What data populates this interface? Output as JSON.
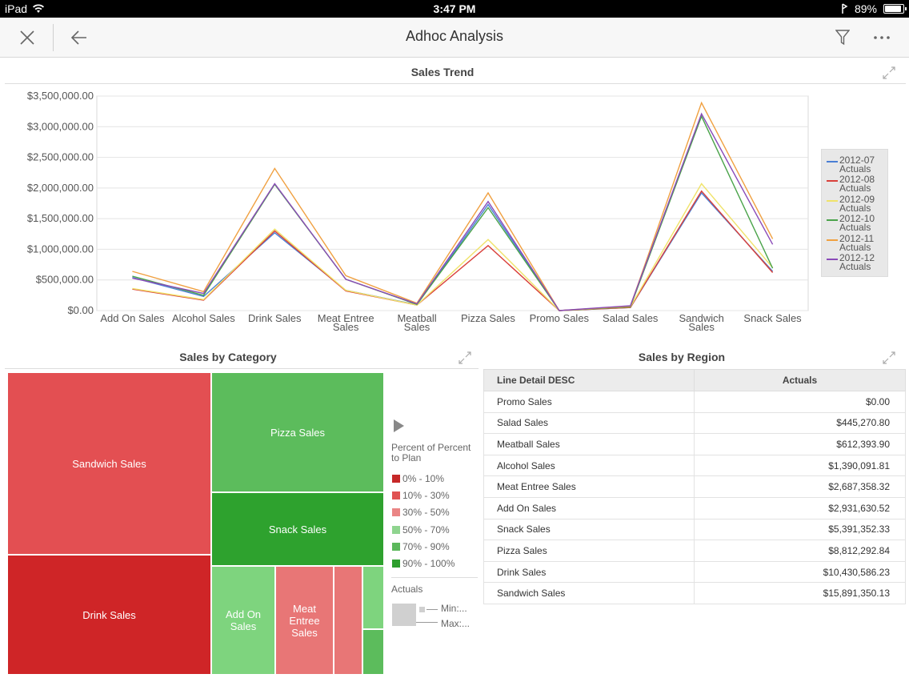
{
  "status_bar": {
    "device": "iPad",
    "time": "3:47 PM",
    "battery": "89%",
    "battery_level": 0.89
  },
  "nav": {
    "title": "Adhoc Analysis"
  },
  "sales_trend": {
    "title": "Sales Trend",
    "legend": [
      {
        "label_line1": "2012-07",
        "label_line2": "Actuals",
        "color": "#4a7fd4"
      },
      {
        "label_line1": "2012-08",
        "label_line2": "Actuals",
        "color": "#d9403a"
      },
      {
        "label_line1": "2012-09",
        "label_line2": "Actuals",
        "color": "#f0e36a"
      },
      {
        "label_line1": "2012-10",
        "label_line2": "Actuals",
        "color": "#4aa34a"
      },
      {
        "label_line1": "2012-11",
        "label_line2": "Actuals",
        "color": "#f0a040"
      },
      {
        "label_line1": "2012-12",
        "label_line2": "Actuals",
        "color": "#8a4ab8"
      }
    ]
  },
  "chart_data": {
    "type": "line",
    "title": "Sales Trend",
    "categories": [
      "Add On Sales",
      "Alcohol Sales",
      "Drink Sales",
      "Meat Entree Sales",
      "Meatball Sales",
      "Pizza Sales",
      "Promo Sales",
      "Salad Sales",
      "Sandwich Sales",
      "Snack Sales"
    ],
    "category_lines": [
      [
        "Add On Sales"
      ],
      [
        "Alcohol Sales"
      ],
      [
        "Drink Sales"
      ],
      [
        "Meat Entree",
        "Sales"
      ],
      [
        "Meatball",
        "Sales"
      ],
      [
        "Pizza Sales"
      ],
      [
        "Promo Sales"
      ],
      [
        "Salad Sales"
      ],
      [
        "Sandwich",
        "Sales"
      ],
      [
        "Snack Sales"
      ]
    ],
    "y_ticks": [
      "$3,500,000.00",
      "$3,000,000.00",
      "$2,500,000.00",
      "$2,000,000.00",
      "$1,500,000.00",
      "$1,000,000.00",
      "$500,000.00",
      "$0.00"
    ],
    "y_tick_values": [
      3500000,
      3000000,
      2500000,
      2000000,
      1500000,
      1000000,
      500000,
      0
    ],
    "ylim": [
      0,
      3500000
    ],
    "grid": true,
    "legend_position": "right",
    "series": [
      {
        "name": "2012-07 Actuals",
        "color": "#4a7fd4",
        "values": [
          540000,
          230000,
          1270000,
          330000,
          95000,
          1730000,
          0,
          50000,
          1920000,
          640000
        ]
      },
      {
        "name": "2012-08 Actuals",
        "color": "#d9403a",
        "values": [
          350000,
          170000,
          1300000,
          320000,
          90000,
          1060000,
          0,
          50000,
          1950000,
          620000
        ]
      },
      {
        "name": "2012-09 Actuals",
        "color": "#f0e36a",
        "values": [
          360000,
          180000,
          1330000,
          330000,
          90000,
          1160000,
          0,
          60000,
          2070000,
          700000
        ]
      },
      {
        "name": "2012-10 Actuals",
        "color": "#4aa34a",
        "values": [
          560000,
          250000,
          2060000,
          510000,
          100000,
          1680000,
          0,
          60000,
          3170000,
          690000
        ]
      },
      {
        "name": "2012-11 Actuals",
        "color": "#f0a040",
        "values": [
          640000,
          310000,
          2320000,
          570000,
          120000,
          1920000,
          0,
          70000,
          3390000,
          1170000
        ]
      },
      {
        "name": "2012-12 Actuals",
        "color": "#8a4ab8",
        "values": [
          530000,
          280000,
          2070000,
          510000,
          110000,
          1780000,
          0,
          80000,
          3210000,
          1080000
        ]
      }
    ]
  },
  "sales_by_category": {
    "title": "Sales by Category",
    "cells": [
      {
        "label": "Sandwich Sales",
        "color": "#e34f52"
      },
      {
        "label": "Drink Sales",
        "color": "#cf2527"
      },
      {
        "label": "Pizza Sales",
        "color": "#5cbc5c"
      },
      {
        "label": "Snack Sales",
        "color": "#2ea22e"
      },
      {
        "label": "Add On Sales",
        "color": "#7ed47e"
      },
      {
        "label": "Meat Entree Sales",
        "color": "#e87676"
      },
      {
        "label": "",
        "color": "#e87676"
      },
      {
        "label": "",
        "color": "#7ed47e"
      },
      {
        "label": "",
        "color": "#5cbc5c"
      }
    ],
    "legend_title": "Percent of Percent to Plan",
    "legend": [
      {
        "label": "0% - 10%",
        "color": "#c62828"
      },
      {
        "label": "10% - 30%",
        "color": "#e05252"
      },
      {
        "label": "30% - 50%",
        "color": "#ea8585"
      },
      {
        "label": "50% - 70%",
        "color": "#8fd48f"
      },
      {
        "label": "70% - 90%",
        "color": "#5cb85c"
      },
      {
        "label": "90% - 100%",
        "color": "#2e9e2e"
      }
    ],
    "size_legend_title": "Actuals",
    "size_min": "Min:...",
    "size_max": "Max:..."
  },
  "sales_by_region": {
    "title": "Sales by Region",
    "columns": [
      "Line Detail DESC",
      "Actuals"
    ],
    "rows": [
      [
        "Promo Sales",
        "$0.00"
      ],
      [
        "Salad Sales",
        "$445,270.80"
      ],
      [
        "Meatball Sales",
        "$612,393.90"
      ],
      [
        "Alcohol Sales",
        "$1,390,091.81"
      ],
      [
        "Meat Entree Sales",
        "$2,687,358.32"
      ],
      [
        "Add On Sales",
        "$2,931,630.52"
      ],
      [
        "Snack Sales",
        "$5,391,352.33"
      ],
      [
        "Pizza Sales",
        "$8,812,292.84"
      ],
      [
        "Drink Sales",
        "$10,430,586.23"
      ],
      [
        "Sandwich Sales",
        "$15,891,350.13"
      ]
    ]
  }
}
